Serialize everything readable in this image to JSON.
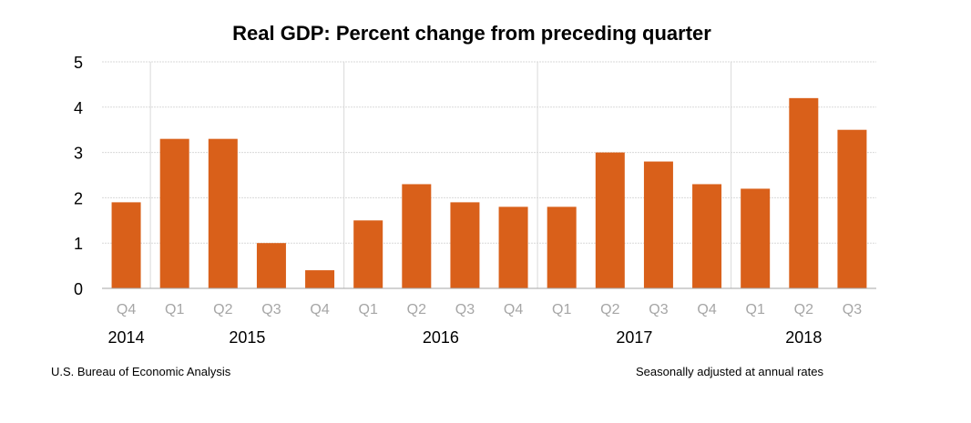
{
  "chart_data": {
    "type": "bar",
    "title": "Real GDP:  Percent change from preceding quarter",
    "xlabel": "",
    "ylabel": "",
    "ylim": [
      0,
      5
    ],
    "yticks": [
      "0",
      "1",
      "2",
      "3",
      "4",
      "5"
    ],
    "grid": true,
    "bar_color": "#D9601A",
    "categories": [
      "Q4",
      "Q1",
      "Q2",
      "Q3",
      "Q4",
      "Q1",
      "Q2",
      "Q3",
      "Q4",
      "Q1",
      "Q2",
      "Q3",
      "Q4",
      "Q1",
      "Q2",
      "Q3"
    ],
    "years": [
      {
        "label": "2014",
        "first_index": 0,
        "last_index": 0
      },
      {
        "label": "2015",
        "first_index": 1,
        "last_index": 4
      },
      {
        "label": "2016",
        "first_index": 5,
        "last_index": 8
      },
      {
        "label": "2017",
        "first_index": 9,
        "last_index": 12
      },
      {
        "label": "2018",
        "first_index": 13,
        "last_index": 15
      }
    ],
    "values": [
      1.9,
      3.3,
      3.3,
      1.0,
      0.4,
      1.5,
      2.3,
      1.9,
      1.8,
      1.8,
      3.0,
      2.8,
      2.3,
      2.2,
      4.2,
      3.5
    ]
  },
  "footer": {
    "source": "U.S. Bureau of Economic Analysis",
    "note": "Seasonally adjusted at annual rates"
  }
}
